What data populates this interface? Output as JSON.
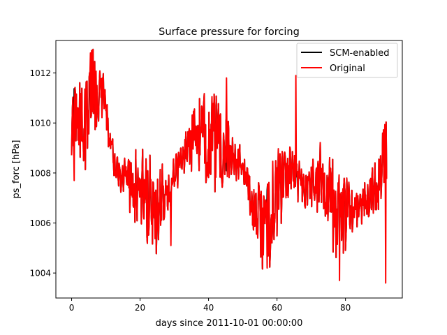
{
  "chart_data": {
    "type": "line",
    "title": "Surface pressure for forcing",
    "xlabel": "days since 2011-10-01 00:00:00",
    "ylabel": "ps_forc [hPa]",
    "xlim": [
      -4.6,
      96.6
    ],
    "ylim": [
      1003.0,
      1013.3
    ],
    "xticks": [
      0,
      20,
      40,
      60,
      80
    ],
    "xtick_labels": [
      "0",
      "20",
      "40",
      "60",
      "80"
    ],
    "yticks": [
      1004,
      1006,
      1008,
      1010,
      1012
    ],
    "ytick_labels": [
      "1004",
      "1006",
      "1008",
      "1010",
      "1012"
    ],
    "legend_position": "top-right",
    "grid": false,
    "colors": {
      "scm": "#000000",
      "original": "#ff0000"
    },
    "series": [
      {
        "name": "SCM-enabled",
        "color": "#000000",
        "x": [
          0,
          2,
          4,
          6,
          8,
          10,
          12,
          14,
          16,
          18,
          20,
          22,
          24,
          26,
          28,
          30,
          32,
          34,
          36,
          38,
          40,
          42,
          44,
          46,
          48,
          50,
          52,
          54,
          56,
          58,
          60,
          62,
          64,
          66,
          68,
          70,
          72,
          74,
          76,
          78,
          80,
          82,
          84,
          86,
          88,
          90,
          92
        ],
        "values": [
          1009.8,
          1010.2,
          1010.0,
          1011.5,
          1011.2,
          1010.5,
          1008.7,
          1008.0,
          1007.8,
          1007.5,
          1007.4,
          1006.8,
          1006.5,
          1006.8,
          1007.2,
          1007.9,
          1008.5,
          1009.2,
          1009.6,
          1009.3,
          1009.5,
          1009.2,
          1008.8,
          1008.8,
          1008.6,
          1008.2,
          1007.2,
          1006.3,
          1005.8,
          1006.3,
          1007.2,
          1007.8,
          1008.0,
          1007.8,
          1007.5,
          1007.6,
          1007.8,
          1007.6,
          1007.0,
          1006.2,
          1006.4,
          1006.6,
          1006.8,
          1007.1,
          1007.3,
          1008.0,
          1009.0
        ]
      },
      {
        "name": "Original",
        "color": "#ff0000",
        "x": [
          0,
          2,
          4,
          6,
          8,
          10,
          12,
          14,
          16,
          18,
          20,
          22,
          24,
          26,
          28,
          30,
          32,
          34,
          36,
          38,
          40,
          42,
          44,
          46,
          48,
          50,
          52,
          54,
          56,
          58,
          60,
          62,
          64,
          66,
          68,
          70,
          72,
          74,
          76,
          78,
          80,
          82,
          84,
          86,
          88,
          90,
          92
        ],
        "values": [
          1009.8,
          1010.2,
          1010.0,
          1011.5,
          1011.2,
          1010.5,
          1008.7,
          1008.0,
          1007.8,
          1007.5,
          1007.4,
          1006.8,
          1006.5,
          1006.8,
          1007.2,
          1007.9,
          1008.5,
          1009.2,
          1009.6,
          1009.3,
          1009.5,
          1009.2,
          1008.8,
          1008.8,
          1008.6,
          1008.2,
          1007.2,
          1006.3,
          1005.8,
          1006.3,
          1007.2,
          1007.8,
          1008.0,
          1007.8,
          1007.5,
          1007.6,
          1007.8,
          1007.6,
          1007.0,
          1006.2,
          1006.4,
          1006.6,
          1006.8,
          1007.1,
          1007.3,
          1008.0,
          1009.0
        ],
        "observed_extremes": [
          {
            "x": 5.5,
            "value": 1012.8
          },
          {
            "x": 0.8,
            "value": 1007.7
          },
          {
            "x": 45.2,
            "value": 1011.8
          },
          {
            "x": 65.5,
            "value": 1011.9
          },
          {
            "x": 78.2,
            "value": 1003.7
          },
          {
            "x": 91.8,
            "value": 1003.6
          },
          {
            "x": 57.1,
            "value": 1004.2
          },
          {
            "x": 29.0,
            "value": 1005.1
          }
        ]
      }
    ]
  }
}
